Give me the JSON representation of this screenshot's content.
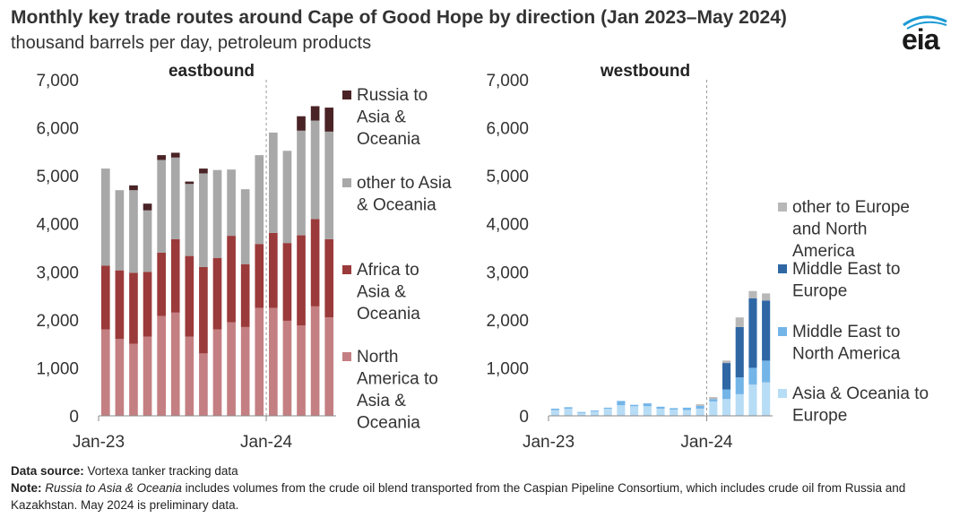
{
  "title": "Monthly key trade routes around Cape of Good Hope by direction (Jan 2023–May 2024)",
  "subtitle": "thousand barrels per day, petroleum products",
  "logo_text": "eia",
  "colors": {
    "north_america_to_asia": "#c47f82",
    "africa_to_asia": "#9b3a3a",
    "other_to_asia": "#a8a8a8",
    "russia_to_asia": "#4a2326",
    "asia_to_europe": "#b7dcf5",
    "middle_east_to_north_america": "#74b5e8",
    "middle_east_to_europe": "#2f67a5",
    "other_to_europe": "#b8b8b8"
  },
  "footer": {
    "source_label": "Data source:",
    "source_text": " Vortexa tanker tracking data",
    "note_label": "Note:",
    "note_italic": "Russia to Asia & Oceania",
    "note_text": " includes volumes from the crude oil blend transported from the Caspian Pipeline Consortium, which includes crude oil from Russia and Kazakhstan. May 2024 is preliminary data."
  },
  "chart_data": [
    {
      "type": "bar",
      "stacked": true,
      "panel_title": "eastbound",
      "categories": [
        "Jan-23",
        "Feb-23",
        "Mar-23",
        "Apr-23",
        "May-23",
        "Jun-23",
        "Jul-23",
        "Aug-23",
        "Sep-23",
        "Oct-23",
        "Nov-23",
        "Dec-23",
        "Jan-24",
        "Feb-24",
        "Mar-24",
        "Apr-24",
        "May-24"
      ],
      "tick_labels": [
        "Jan-23",
        "Jan-24"
      ],
      "ylim": [
        0,
        7000
      ],
      "yticks": [
        0,
        1000,
        2000,
        3000,
        4000,
        5000,
        6000,
        7000
      ],
      "ytick_labels": [
        "0",
        "1,000",
        "2,000",
        "3,000",
        "4,000",
        "5,000",
        "6,000",
        "7,000"
      ],
      "divider_after": "Dec-23",
      "legend_position": "right",
      "series": [
        {
          "name": "North America to Asia & Oceania",
          "color_key": "north_america_to_asia",
          "values": [
            1800,
            1600,
            1500,
            1650,
            2080,
            2150,
            1650,
            1300,
            1800,
            1950,
            1850,
            2250,
            2250,
            1980,
            1880,
            2280,
            2050
          ]
        },
        {
          "name": "Africa to Asia & Oceania",
          "color_key": "africa_to_asia",
          "values": [
            1330,
            1430,
            1480,
            1350,
            1320,
            1530,
            1680,
            1800,
            1490,
            1800,
            1310,
            1330,
            1560,
            1620,
            1880,
            1820,
            1630
          ]
        },
        {
          "name": "other to Asia & Oceania",
          "color_key": "other_to_asia",
          "values": [
            2020,
            1670,
            1720,
            1280,
            1930,
            1700,
            1500,
            1950,
            1830,
            1380,
            1560,
            1850,
            2090,
            1920,
            2180,
            2050,
            2240
          ]
        },
        {
          "name": "Russia to Asia & Oceania",
          "color_key": "russia_to_asia",
          "values": [
            0,
            0,
            100,
            140,
            100,
            100,
            50,
            100,
            0,
            0,
            0,
            0,
            0,
            0,
            300,
            300,
            500
          ]
        }
      ]
    },
    {
      "type": "bar",
      "stacked": true,
      "panel_title": "westbound",
      "categories": [
        "Jan-23",
        "Feb-23",
        "Mar-23",
        "Apr-23",
        "May-23",
        "Jun-23",
        "Jul-23",
        "Aug-23",
        "Sep-23",
        "Oct-23",
        "Nov-23",
        "Dec-23",
        "Jan-24",
        "Feb-24",
        "Mar-24",
        "Apr-24",
        "May-24"
      ],
      "tick_labels": [
        "Jan-23",
        "Jan-24"
      ],
      "ylim": [
        0,
        7000
      ],
      "yticks": [
        0,
        1000,
        2000,
        3000,
        4000,
        5000,
        6000,
        7000
      ],
      "ytick_labels": [
        "0",
        "1,000",
        "2,000",
        "3,000",
        "4,000",
        "5,000",
        "6,000",
        "7,000"
      ],
      "divider_after": "Dec-23",
      "legend_position": "right",
      "series": [
        {
          "name": "Asia & Oceania to Europe",
          "color_key": "asia_to_europe",
          "values": [
            120,
            150,
            60,
            90,
            150,
            220,
            200,
            200,
            150,
            130,
            120,
            150,
            300,
            350,
            450,
            650,
            700
          ]
        },
        {
          "name": "Middle East to North America",
          "color_key": "middle_east_to_north_america",
          "values": [
            30,
            30,
            20,
            20,
            20,
            90,
            30,
            60,
            40,
            30,
            50,
            60,
            50,
            200,
            350,
            350,
            450
          ]
        },
        {
          "name": "Middle East to Europe",
          "color_key": "middle_east_to_europe",
          "values": [
            0,
            0,
            0,
            0,
            0,
            0,
            0,
            0,
            0,
            0,
            0,
            0,
            0,
            550,
            1050,
            1450,
            1250
          ]
        },
        {
          "name": "other to Europe and North America",
          "color_key": "other_to_europe",
          "values": [
            0,
            0,
            0,
            0,
            0,
            0,
            0,
            0,
            0,
            0,
            0,
            30,
            40,
            50,
            200,
            150,
            150
          ]
        }
      ]
    }
  ],
  "legends": [
    {
      "entries": [
        {
          "lines": [
            "Russia to",
            "Asia &",
            "Oceania"
          ],
          "color_key": "russia_to_asia"
        },
        {
          "lines": [
            "other to Asia",
            "& Oceania"
          ],
          "color_key": "other_to_asia"
        },
        {
          "lines": [
            "Africa to",
            "Asia &",
            "Oceania"
          ],
          "color_key": "africa_to_asia"
        },
        {
          "lines": [
            "North",
            "America to",
            "Asia &",
            "Oceania"
          ],
          "color_key": "north_america_to_asia"
        }
      ]
    },
    {
      "entries": [
        {
          "lines": [
            "other to Europe",
            "and North",
            "America"
          ],
          "color_key": "other_to_europe"
        },
        {
          "lines": [
            "Middle East to",
            "Europe"
          ],
          "color_key": "middle_east_to_europe"
        },
        {
          "lines": [
            "Middle East to",
            "North America"
          ],
          "color_key": "middle_east_to_north_america"
        },
        {
          "lines": [
            "Asia & Oceania to",
            "Europe"
          ],
          "color_key": "asia_to_europe"
        }
      ]
    }
  ]
}
